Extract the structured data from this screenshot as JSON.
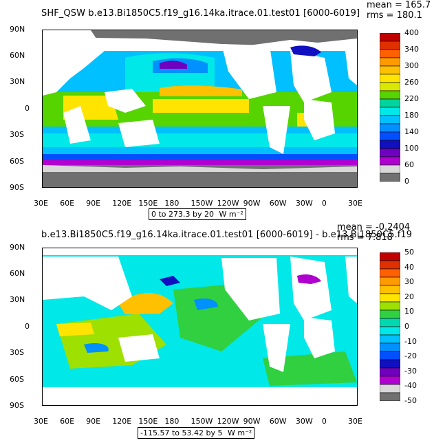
{
  "chart_data": [
    {
      "type": "heatmap",
      "title": "SHF_QSW b.e13.Bi1850C5.f19_g16.14ka.itrace.01.test01 [6000-6019]",
      "stats": {
        "mean": "mean = 165.7",
        "rms": "rms = 180.1"
      },
      "range_text": "0 to 273.3 by 20",
      "units": "W m⁻²",
      "xlabels": [
        "30E",
        "60E",
        "90E",
        "120E",
        "150E",
        "180",
        "150W",
        "120W",
        "90W",
        "60W",
        "30W",
        "0",
        "30E"
      ],
      "ylabels": [
        "90N",
        "60N",
        "30N",
        "0",
        "30S",
        "60S",
        "90S"
      ],
      "colorbar": {
        "labels": [
          "400",
          "340",
          "300",
          "260",
          "220",
          "180",
          "140",
          "100",
          "60",
          "0"
        ],
        "colors": [
          "#c00000",
          "#e03000",
          "#ff6000",
          "#ff9a00",
          "#ffc000",
          "#ffe400",
          "#d8e800",
          "#56d400",
          "#00d4a0",
          "#00e8e8",
          "#00c0ff",
          "#0090ff",
          "#0050ff",
          "#1010c0",
          "#7000c0",
          "#b000d0",
          "#d8d8d8",
          "#707070"
        ]
      }
    },
    {
      "type": "heatmap",
      "title": "b.e13.Bi1850C5.f19_g16.14ka.itrace.01.test01 [6000-6019] - b.e13.Bi1850C5.f19",
      "stats": {
        "mean": "mean = -0.2404",
        "rms": "rms = 7.818"
      },
      "range_text": "-115.57 to 53.42 by 5",
      "units": "W m⁻²",
      "xlabels": [
        "30E",
        "60E",
        "90E",
        "120E",
        "150E",
        "180",
        "150W",
        "120W",
        "90W",
        "60W",
        "30W",
        "0",
        "30E"
      ],
      "ylabels": [
        "90N",
        "60N",
        "30N",
        "0",
        "30S",
        "60S",
        "90S"
      ],
      "colorbar": {
        "labels": [
          "50",
          "40",
          "30",
          "20",
          "10",
          "0",
          "-10",
          "-20",
          "-30",
          "-40",
          "-50"
        ],
        "colors": [
          "#c00000",
          "#e03000",
          "#ff6000",
          "#ff9a00",
          "#ffc000",
          "#ffe400",
          "#9ee000",
          "#30d040",
          "#00d8b0",
          "#00e8e8",
          "#00c0ff",
          "#0090ff",
          "#0050ff",
          "#1010c0",
          "#7000c0",
          "#b000d0",
          "#d8d8d8",
          "#707070"
        ]
      }
    }
  ],
  "colors": {
    "land": "#ffffff",
    "ice": "#707070",
    "background": "#ffffff"
  }
}
